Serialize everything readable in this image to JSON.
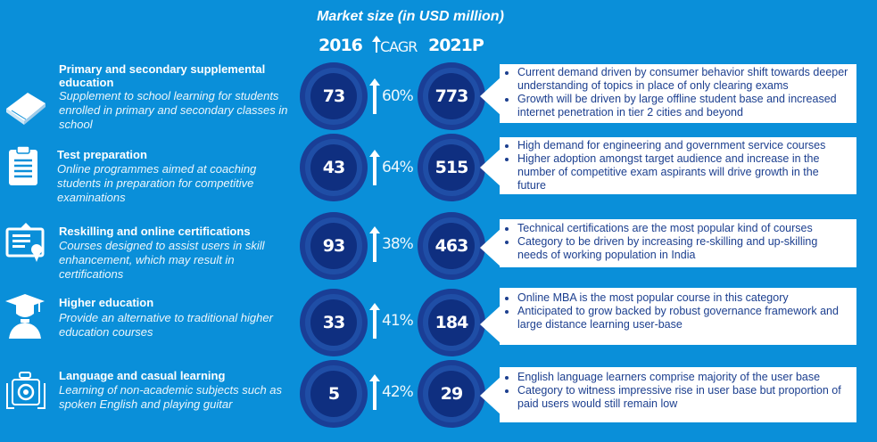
{
  "title": "Market size (in USD million)",
  "headers": {
    "year1": "2016",
    "cagr": "CAGR",
    "year2": "2021P"
  },
  "chart_data": {
    "type": "table",
    "title": "Market size (in USD million)",
    "columns": [
      "2016",
      "CAGR",
      "2021P"
    ],
    "rows": [
      {
        "category": "Primary and secondary supplemental education",
        "2016": 73,
        "cagr": "60%",
        "2021P": 773
      },
      {
        "category": "Test preparation",
        "2016": 43,
        "cagr": "64%",
        "2021P": 515
      },
      {
        "category": "Reskilling and online certifications",
        "2016": 93,
        "cagr": "38%",
        "2021P": 463
      },
      {
        "category": "Higher education",
        "2016": 33,
        "cagr": "41%",
        "2021P": 184
      },
      {
        "category": "Language and casual learning",
        "2016": 5,
        "cagr": "42%",
        "2021P": 29
      }
    ]
  },
  "rows": [
    {
      "icon": "book-icon",
      "title": "Primary and secondary supplemental education",
      "desc": "Supplement to school learning for students enrolled in primary and secondary classes in school",
      "v2016": "73",
      "cagr": "60%",
      "v2021": "773",
      "bullets": [
        "Current demand driven by consumer behavior shift towards deeper understanding of topics in place of only clearing exams",
        "Growth will be driven by large offline student base and increased internet penetration in tier 2 cities and beyond"
      ]
    },
    {
      "icon": "clipboard-icon",
      "title": "Test preparation",
      "desc": "Online programmes aimed at coaching students in preparation for competitive examinations",
      "v2016": "43",
      "cagr": "64%",
      "v2021": "515",
      "bullets": [
        "High demand for engineering and government service courses",
        "Higher adoption amongst target audience and increase in the number of competitive exam aspirants will drive growth in the future"
      ]
    },
    {
      "icon": "certificate-icon",
      "title": "Reskilling and online certifications",
      "desc": "Courses designed to assist users in skill enhancement, which may result in certifications",
      "v2016": "93",
      "cagr": "38%",
      "v2021": "463",
      "bullets": [
        "Technical certifications are the most popular kind of courses",
        "Category to be driven by increasing re-skilling and up-skilling needs of working population in India"
      ]
    },
    {
      "icon": "graduate-icon",
      "title": "Higher education",
      "desc": "Provide an alternative to traditional higher education courses",
      "v2016": "33",
      "cagr": "41%",
      "v2021": "184",
      "bullets": [
        "Online MBA is the most popular course in this category",
        "Anticipated to grow backed by robust governance framework and large distance learning user-base"
      ]
    },
    {
      "icon": "camera-icon",
      "title": "Language and casual learning",
      "desc": "Learning of non-academic subjects such as spoken English and playing guitar",
      "v2016": "5",
      "cagr": "42%",
      "v2021": "29",
      "bullets": [
        "English language learners comprise majority of the user base",
        "Category to witness impressive rise in user base but proportion of paid users would still remain low"
      ]
    }
  ]
}
